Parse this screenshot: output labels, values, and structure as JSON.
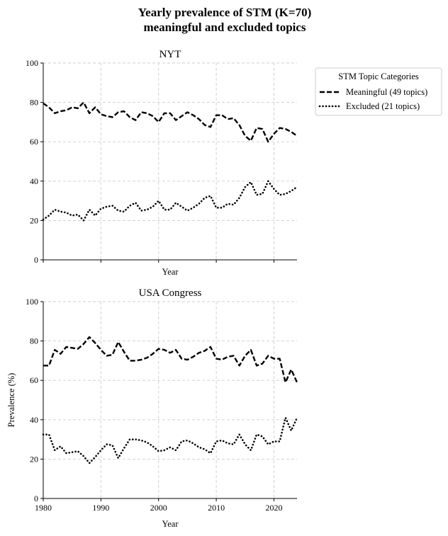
{
  "figure_title_line1": "Yearly prevalence of STM (K=70)",
  "figure_title_line2": "meaningful and excluded topics",
  "legend": {
    "title": "STM Topic Categories",
    "placement": "outside-right-top",
    "entries": [
      {
        "label": "Meaningful (49 topics)",
        "style": "dashed"
      },
      {
        "label": "Excluded (21 topics)",
        "style": "dotted"
      }
    ]
  },
  "chart_data": [
    {
      "type": "line",
      "title": "NYT",
      "xlabel": "Year",
      "ylabel": "",
      "xlim": [
        1980,
        2024
      ],
      "ylim": [
        0,
        100
      ],
      "xticks": [
        1980,
        1990,
        2000,
        2010,
        2020
      ],
      "yticks": [
        0,
        20,
        40,
        60,
        80,
        100
      ],
      "show_xtick_labels": false,
      "grid": true,
      "x": [
        1980,
        1981,
        1982,
        1983,
        1984,
        1985,
        1986,
        1987,
        1988,
        1989,
        1990,
        1991,
        1992,
        1993,
        1994,
        1995,
        1996,
        1997,
        1998,
        1999,
        2000,
        2001,
        2002,
        2003,
        2004,
        2005,
        2006,
        2007,
        2008,
        2009,
        2010,
        2011,
        2012,
        2013,
        2014,
        2015,
        2016,
        2017,
        2018,
        2019,
        2020,
        2021,
        2022,
        2023,
        2024
      ],
      "series": [
        {
          "name": "Meaningful (49 topics)",
          "style": "dashed",
          "values": [
            79.5,
            77.5,
            74.5,
            75.5,
            76,
            77.5,
            77,
            80,
            74.5,
            77.5,
            74,
            73,
            72.5,
            75,
            75.5,
            72.5,
            71,
            75,
            74.5,
            73,
            70,
            74.5,
            74.5,
            71,
            73,
            75,
            73.5,
            71.5,
            68.5,
            67.5,
            73.5,
            73.5,
            71.5,
            72,
            68.5,
            63,
            60.5,
            67,
            66.5,
            60,
            64,
            67,
            66.5,
            65,
            63
          ]
        },
        {
          "name": "Excluded (21 topics)",
          "style": "dotted",
          "values": [
            20.5,
            22.5,
            25.5,
            24.5,
            24,
            22.5,
            23,
            20,
            25.5,
            22.5,
            26,
            27,
            27.5,
            25,
            24.5,
            27.5,
            29,
            25,
            25.5,
            27,
            30,
            25.5,
            25.5,
            29,
            27,
            25,
            26.5,
            28.5,
            31.5,
            32.5,
            26.5,
            26.5,
            28.5,
            28,
            31.5,
            37,
            39.5,
            33,
            33.5,
            40,
            36,
            33,
            33.5,
            35,
            37
          ]
        }
      ]
    },
    {
      "type": "line",
      "title": "USA Congress",
      "xlabel": "Year",
      "ylabel": "Prevalence (%)",
      "xlim": [
        1980,
        2024
      ],
      "ylim": [
        0,
        100
      ],
      "xticks": [
        1980,
        1990,
        2000,
        2010,
        2020
      ],
      "yticks": [
        0,
        20,
        40,
        60,
        80,
        100
      ],
      "show_xtick_labels": true,
      "grid": true,
      "x": [
        1980,
        1981,
        1982,
        1983,
        1984,
        1985,
        1986,
        1987,
        1988,
        1989,
        1990,
        1991,
        1992,
        1993,
        1994,
        1995,
        1996,
        1997,
        1998,
        1999,
        2000,
        2001,
        2002,
        2003,
        2004,
        2005,
        2006,
        2007,
        2008,
        2009,
        2010,
        2011,
        2012,
        2013,
        2014,
        2015,
        2016,
        2017,
        2018,
        2019,
        2020,
        2021,
        2022,
        2023,
        2024
      ],
      "series": [
        {
          "name": "Meaningful (49 topics)",
          "style": "dashed",
          "values": [
            67.5,
            67.5,
            75.5,
            73.5,
            77,
            76.5,
            76,
            78.5,
            82,
            79,
            75.5,
            72.5,
            73,
            79.5,
            74.5,
            70,
            70,
            70.5,
            71.5,
            73.5,
            76,
            75.5,
            74,
            75.5,
            71,
            70.5,
            72,
            74,
            75,
            77,
            71,
            70.5,
            72,
            72.5,
            67.5,
            72.5,
            75.5,
            67.5,
            68.5,
            72.5,
            71,
            71,
            59,
            65.5,
            59
          ]
        },
        {
          "name": "Excluded (21 topics)",
          "style": "dotted",
          "values": [
            32.5,
            32.5,
            24.5,
            26.5,
            23,
            23.5,
            24,
            21.5,
            18,
            21,
            24.5,
            27.5,
            27,
            20.5,
            25.5,
            30,
            30,
            29.5,
            28.5,
            26.5,
            24,
            24.5,
            26,
            24.5,
            29,
            29.5,
            28,
            26,
            25,
            23,
            29,
            29.5,
            28,
            27.5,
            32.5,
            27.5,
            24.5,
            32.5,
            31.5,
            27.5,
            29,
            29,
            41,
            34.5,
            41
          ]
        }
      ]
    }
  ]
}
